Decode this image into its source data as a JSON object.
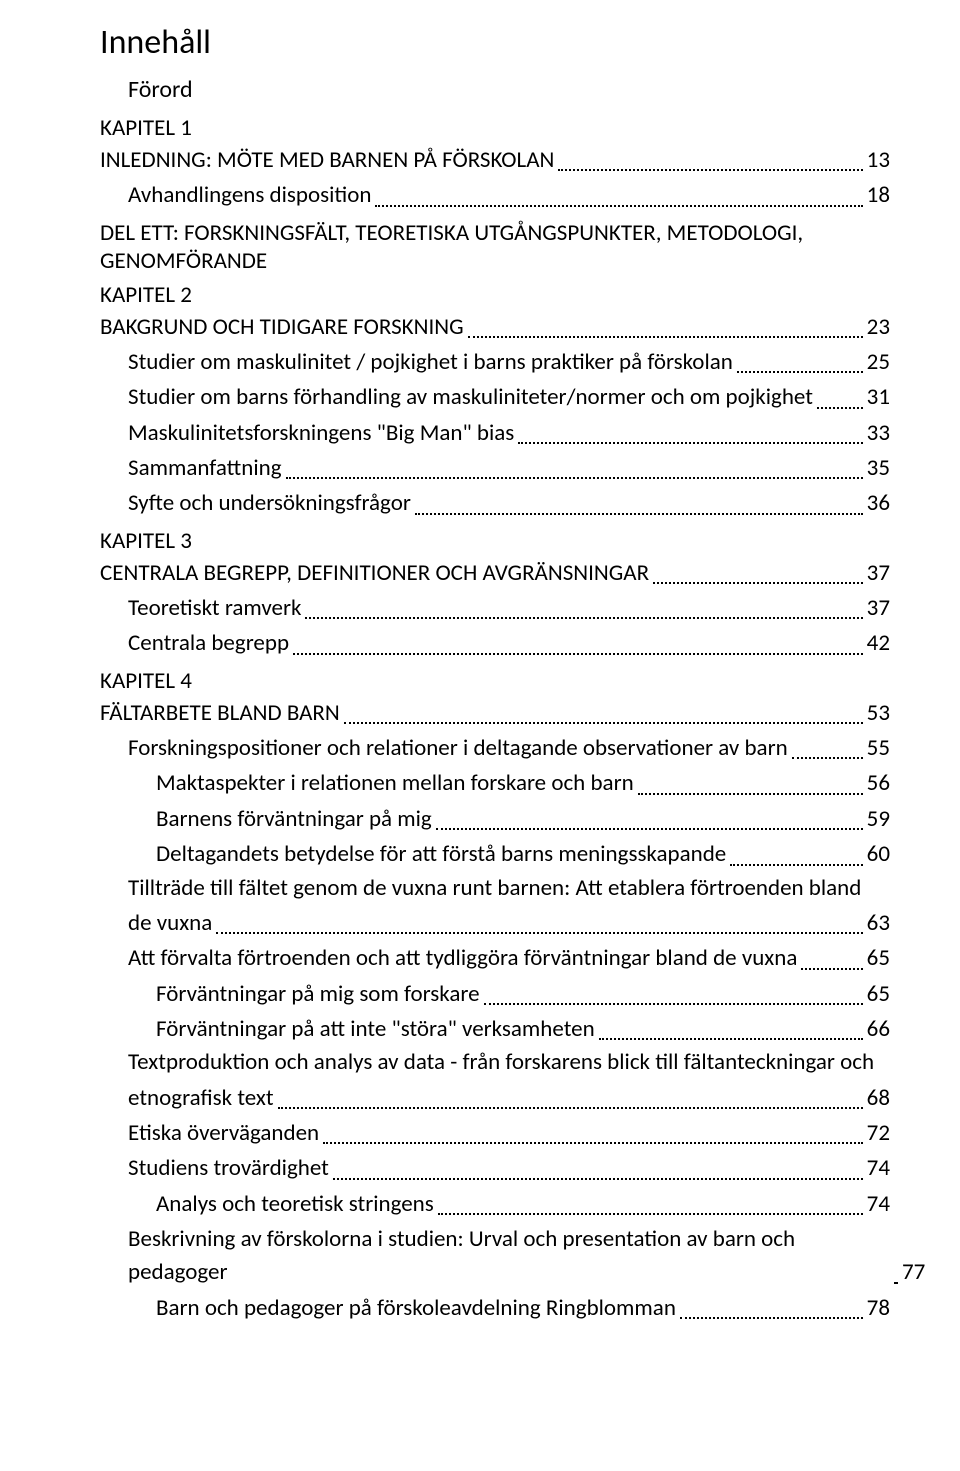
{
  "title": "Innehåll",
  "forord": "Förord",
  "entries": [
    {
      "type": "label",
      "level": 0,
      "text": "KAPITEL 1"
    },
    {
      "type": "row",
      "level": 0,
      "text": "INLEDNING: MÖTE MED BARNEN PÅ FÖRSKOLAN",
      "page": "13"
    },
    {
      "type": "row",
      "level": 1,
      "text": "Avhandlingens disposition",
      "page": "18"
    },
    {
      "type": "label",
      "level": 0,
      "text": "DEL ETT:  FORSKNINGSFÄLT, TEORETISKA UTGÅNGSPUNKTER, METODOLOGI, GENOMFÖRANDE"
    },
    {
      "type": "label",
      "level": 0,
      "text": "KAPITEL 2"
    },
    {
      "type": "row",
      "level": 0,
      "text": "BAKGRUND OCH TIDIGARE FORSKNING",
      "page": "23"
    },
    {
      "type": "row",
      "level": 1,
      "text": "Studier om maskulinitet / pojkighet i barns praktiker på förskolan",
      "page": "25"
    },
    {
      "type": "row",
      "level": 1,
      "text": "Studier om barns förhandling av maskuliniteter/normer  och om pojkighet",
      "page": "31"
    },
    {
      "type": "row",
      "level": 1,
      "text": "Maskulinitetsforskningens \"Big Man\" bias",
      "page": "33"
    },
    {
      "type": "row",
      "level": 1,
      "text": "Sammanfattning",
      "page": "35"
    },
    {
      "type": "row",
      "level": 1,
      "text": "Syfte och undersökningsfrågor",
      "page": "36"
    },
    {
      "type": "label",
      "level": 0,
      "text": "KAPITEL 3"
    },
    {
      "type": "row",
      "level": 0,
      "text": "CENTRALA BEGREPP, DEFINITIONER OCH AVGRÄNSNINGAR",
      "page": "37"
    },
    {
      "type": "row",
      "level": 1,
      "text": "Teoretiskt ramverk",
      "page": "37"
    },
    {
      "type": "row",
      "level": 1,
      "text": "Centrala begrepp",
      "page": "42"
    },
    {
      "type": "label",
      "level": 0,
      "text": "KAPITEL 4"
    },
    {
      "type": "row",
      "level": 0,
      "text": "FÄLTARBETE BLAND BARN",
      "page": "53"
    },
    {
      "type": "row",
      "level": 1,
      "text": "Forskningspositioner och relationer i deltagande observationer av barn",
      "page": "55"
    },
    {
      "type": "row",
      "level": 2,
      "text": "Maktaspekter i relationen mellan forskare och barn",
      "page": "56"
    },
    {
      "type": "row",
      "level": 2,
      "text": "Barnens förväntningar på mig",
      "page": "59"
    },
    {
      "type": "row",
      "level": 2,
      "text": "Deltagandets betydelse för att förstå barns meningsskapande",
      "page": "60"
    },
    {
      "type": "multi",
      "level": 1,
      "line1": "Tillträde till fältet genom de vuxna runt barnen: Att etablera förtroenden bland",
      "line2": "de vuxna",
      "page": "63"
    },
    {
      "type": "row",
      "level": 1,
      "text": "Att förvalta förtroenden och att tydliggöra förväntningar bland de vuxna",
      "page": "65"
    },
    {
      "type": "row",
      "level": 2,
      "text": "Förväntningar på mig som forskare",
      "page": "65"
    },
    {
      "type": "row",
      "level": 2,
      "text": "Förväntningar på att inte \"störa\" verksamheten",
      "page": "66"
    },
    {
      "type": "multi",
      "level": 1,
      "line1": "Textproduktion och analys av data - från forskarens blick till fältanteckningar och",
      "line2": "etnografisk text",
      "page": "68"
    },
    {
      "type": "row",
      "level": 1,
      "text": "Etiska överväganden",
      "page": "72"
    },
    {
      "type": "row",
      "level": 1,
      "text": "Studiens trovärdighet",
      "page": "74"
    },
    {
      "type": "row",
      "level": 2,
      "text": "Analys och teoretisk stringens",
      "page": "74"
    },
    {
      "type": "row",
      "level": 1,
      "text": "Beskrivning av förskolorna i studien: Urval och presentation av barn och pedagoger",
      "page": "77",
      "tight": true
    },
    {
      "type": "row",
      "level": 2,
      "text": "Barn och pedagoger på förskoleavdelning Ringblomman",
      "page": "78"
    }
  ]
}
